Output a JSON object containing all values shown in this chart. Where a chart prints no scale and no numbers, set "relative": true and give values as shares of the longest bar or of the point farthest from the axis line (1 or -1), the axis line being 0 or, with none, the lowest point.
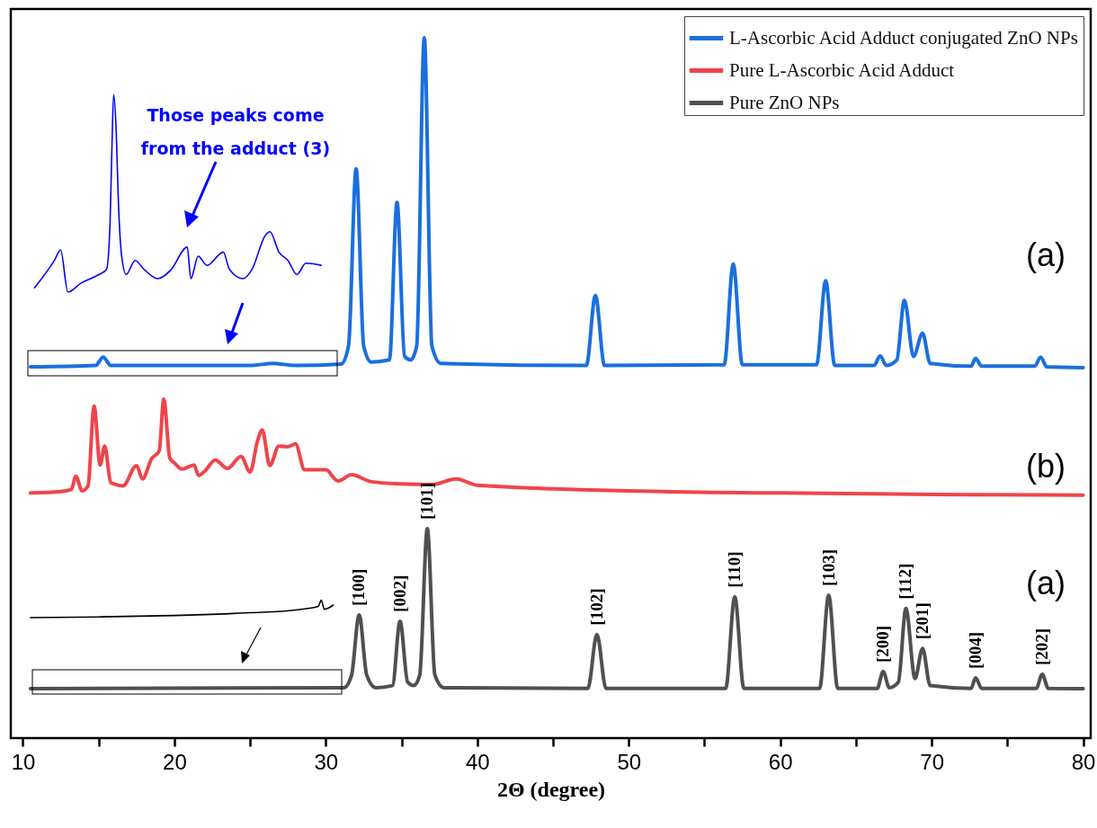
{
  "chart_data": {
    "type": "line",
    "relative": true,
    "xlabel": "2Θ (degree)",
    "xlim": [
      9.2,
      80.5
    ],
    "xticks": [
      10,
      {
        "value": 15,
        "label": null
      },
      20,
      {
        "value": 25,
        "label": null
      },
      30,
      {
        "value": 35,
        "label": null
      },
      40,
      {
        "value": 45,
        "label": null
      },
      50,
      {
        "value": 55,
        "label": null
      },
      60,
      {
        "value": 65,
        "label": null
      },
      70,
      {
        "value": 75,
        "label": null
      },
      80
    ],
    "legend": "top right",
    "series": [
      {
        "name": "L-Ascorbic Acid Adduct conjugated ZnO NPs",
        "color": "#1a6fdf",
        "x": [
          10.5,
          14.8,
          15.3,
          15.8,
          25,
          26.5,
          28,
          31.0,
          31.5,
          32.0,
          32.5,
          33,
          34.2,
          34.7,
          35.2,
          35.6,
          36.0,
          36.5,
          37.0,
          37.6,
          47.2,
          47.8,
          48.4,
          56.3,
          56.9,
          57.5,
          62.4,
          63.0,
          63.6,
          66.2,
          66.6,
          67.0,
          67.7,
          68.2,
          68.8,
          69.4,
          69.9,
          72.6,
          72.9,
          73.3,
          76.8,
          77.2,
          77.6,
          80
        ],
        "values": [
          0.53,
          0.532,
          0.544,
          0.532,
          0.532,
          0.535,
          0.532,
          0.534,
          0.56,
          0.813,
          0.56,
          0.537,
          0.54,
          0.765,
          0.545,
          0.54,
          0.56,
          1.0,
          0.56,
          0.535,
          0.532,
          0.632,
          0.532,
          0.533,
          0.677,
          0.533,
          0.533,
          0.653,
          0.532,
          0.532,
          0.546,
          0.532,
          0.54,
          0.625,
          0.545,
          0.578,
          0.535,
          0.531,
          0.542,
          0.531,
          0.531,
          0.544,
          0.53,
          0.529
        ]
      },
      {
        "name": "Pure L-Ascorbic Acid Adduct",
        "color": "#f0444a",
        "x": [
          10.5,
          12.5,
          13.2,
          13.5,
          13.9,
          14.3,
          14.7,
          15.1,
          15.4,
          15.8,
          16.0,
          16.6,
          17.5,
          17.9,
          18.5,
          19.0,
          19.3,
          19.7,
          20.0,
          20.5,
          21.3,
          21.6,
          22.0,
          22.7,
          23.5,
          24.4,
          25.0,
          25.5,
          25.8,
          26.3,
          26.9,
          27.5,
          28.0,
          28.6,
          30.0,
          30.8,
          31.7,
          33.0,
          35,
          37,
          38.6,
          40,
          50,
          60,
          70,
          80
        ],
        "values": [
          0.35,
          0.352,
          0.355,
          0.374,
          0.353,
          0.36,
          0.474,
          0.39,
          0.417,
          0.365,
          0.363,
          0.36,
          0.389,
          0.37,
          0.399,
          0.41,
          0.484,
          0.4,
          0.393,
          0.384,
          0.39,
          0.375,
          0.381,
          0.397,
          0.385,
          0.402,
          0.38,
          0.425,
          0.44,
          0.389,
          0.417,
          0.416,
          0.42,
          0.383,
          0.383,
          0.367,
          0.376,
          0.366,
          0.363,
          0.362,
          0.37,
          0.361,
          0.353,
          0.35,
          0.348,
          0.347
        ]
      },
      {
        "name": "Pure ZnO NPs",
        "color": "#505050",
        "x": [
          10.5,
          31.2,
          31.7,
          32.2,
          32.7,
          33.3,
          34.4,
          34.9,
          35.4,
          35.8,
          36.2,
          36.7,
          37.2,
          37.8,
          47.3,
          47.9,
          48.5,
          56.4,
          57.0,
          57.6,
          62.6,
          63.2,
          63.8,
          66.4,
          66.8,
          67.2,
          67.8,
          68.3,
          68.9,
          69.4,
          69.9,
          72.6,
          72.9,
          73.3,
          76.9,
          77.3,
          77.7,
          80
        ],
        "values": [
          0.0706,
          0.072,
          0.09,
          0.176,
          0.09,
          0.072,
          0.075,
          0.167,
          0.08,
          0.075,
          0.09,
          0.299,
          0.09,
          0.072,
          0.071,
          0.148,
          0.071,
          0.071,
          0.202,
          0.071,
          0.071,
          0.204,
          0.071,
          0.071,
          0.095,
          0.072,
          0.08,
          0.185,
          0.085,
          0.128,
          0.075,
          0.071,
          0.086,
          0.071,
          0.071,
          0.091,
          0.071,
          0.0706
        ]
      },
      {
        "color": "#0000ff",
        "x": [
          10.77,
          12.08,
          12.49,
          12.97,
          13.86,
          15.04,
          15.52,
          15.75,
          15.87,
          15.99,
          16.17,
          16.29,
          16.52,
          16.82,
          17.41,
          18.01,
          18.9,
          19.79,
          20.85,
          21.09,
          21.57,
          22.16,
          23.23,
          23.64,
          24.53,
          25.12,
          26.01,
          26.31,
          26.9,
          27.5,
          28.09,
          28.68,
          29.69
        ],
        "values": [
          0.643,
          0.682,
          0.697,
          0.637,
          0.65,
          0.662,
          0.669,
          0.733,
          0.836,
          0.919,
          0.861,
          0.775,
          0.688,
          0.662,
          0.682,
          0.669,
          0.656,
          0.669,
          0.701,
          0.656,
          0.688,
          0.675,
          0.694,
          0.669,
          0.656,
          0.669,
          0.718,
          0.723,
          0.694,
          0.682,
          0.662,
          0.678,
          0.675
        ]
      },
      {
        "color": "#000000",
        "x": [
          10.5,
          15,
          20,
          25,
          28,
          29.5,
          29.7,
          29.9,
          30.5
        ],
        "values": [
          0.172,
          0.173,
          0.175,
          0.179,
          0.183,
          0.188,
          0.197,
          0.184,
          0.19
        ]
      }
    ],
    "annotations": [
      "Those peaks come\nfrom the adduct (3)",
      "(a)",
      "(b)",
      "(a)",
      {
        "text": "[100]",
        "x": 32.2,
        "y": 0.176
      },
      {
        "text": "[002]",
        "x": 34.9,
        "y": 0.167
      },
      {
        "text": "[101]",
        "x": 36.7,
        "y": 0.299
      },
      {
        "text": "[102]",
        "x": 47.9,
        "y": 0.148
      },
      {
        "text": "[110]",
        "x": 57.0,
        "y": 0.202
      },
      {
        "text": "[103]",
        "x": 63.2,
        "y": 0.204
      },
      {
        "text": "[200]",
        "x": 66.8,
        "y": 0.095
      },
      {
        "text": "[112]",
        "x": 68.3,
        "y": 0.185
      },
      {
        "text": "[201]",
        "x": 69.4,
        "y": 0.128
      },
      {
        "text": "[004]",
        "x": 72.9,
        "y": 0.086
      },
      {
        "text": "[202]",
        "x": 77.3,
        "y": 0.091
      }
    ]
  }
}
